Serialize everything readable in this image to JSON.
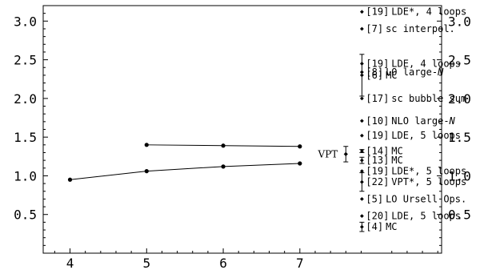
{
  "chart_data": {
    "type": "scatter",
    "title": "",
    "xlabel": "",
    "ylabel": "",
    "xlim": [
      3.65,
      8.85
    ],
    "ylim": [
      0.0,
      3.2
    ],
    "xticks": [
      "4",
      "5",
      "6",
      "7"
    ],
    "yticks": [
      "0.5",
      "1.0",
      "1.5",
      "2.0",
      "2.5",
      "3.0"
    ],
    "grid": false,
    "series": [
      {
        "name": "",
        "x": [
          5,
          6,
          7
        ],
        "values": [
          1.4,
          1.39,
          1.38
        ]
      },
      {
        "name": "",
        "x": [
          4,
          5,
          6,
          7
        ],
        "values": [
          0.95,
          1.06,
          1.12,
          1.16
        ]
      }
    ],
    "vpt": {
      "label": "VPT",
      "value": 1.28,
      "error": 0.1
    },
    "annotations": [
      {
        "ref": "[19]",
        "text": "LDE*, 4 loops",
        "value": 3.12
      },
      {
        "ref": "[7]",
        "text": "sc interpol.",
        "value": 2.9
      },
      {
        "ref": "[19]",
        "text": "LDE, 4 loops",
        "value": 2.45
      },
      {
        "ref": "[8]",
        "text": "LO large-",
        "italic": "N",
        "value": 2.34
      },
      {
        "ref": "[6]",
        "text": "MC",
        "value": 2.3,
        "error": 0.27
      },
      {
        "ref": "[17]",
        "text": "sc bubble sum",
        "value": 2.0
      },
      {
        "ref": "[10]",
        "text": "NLO large-",
        "italic": "N",
        "value": 1.71
      },
      {
        "ref": "[19]",
        "text": "LDE, 5 loops",
        "value": 1.52
      },
      {
        "ref": "[14]",
        "text": "MC",
        "value": 1.32,
        "error": 0.02
      },
      {
        "ref": "[13]",
        "text": "MC",
        "value": 1.2,
        "error": 0.04
      },
      {
        "ref": "[19]",
        "text": "LDE*, 5 loops",
        "value": 1.06
      },
      {
        "ref": "[22]",
        "text": "VPT*, 5 loops",
        "value": 0.92,
        "error": 0.12
      },
      {
        "ref": "[5]",
        "text": "LO Ursell Ops.",
        "value": 0.7
      },
      {
        "ref": "[20]",
        "text": "LDE, 5 loops",
        "value": 0.48
      },
      {
        "ref": "[4]",
        "text": "MC",
        "value": 0.34,
        "error": 0.06
      }
    ]
  }
}
